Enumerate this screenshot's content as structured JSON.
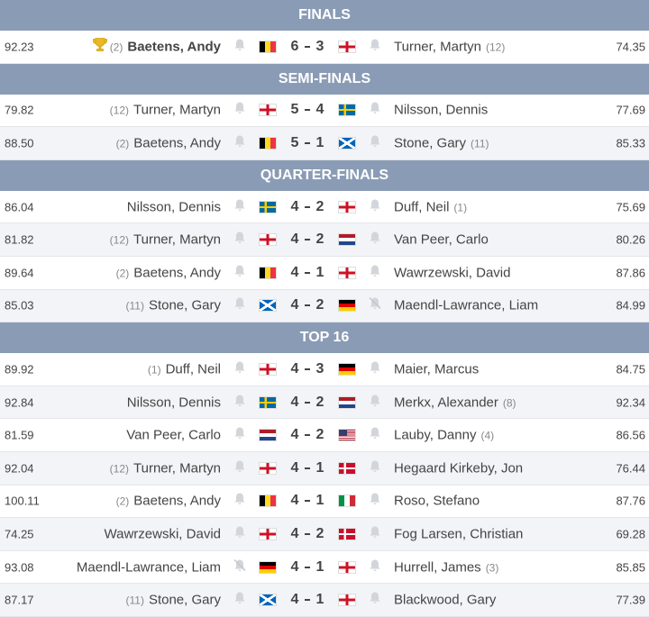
{
  "sections": [
    {
      "title": "FINALS",
      "matches": [
        {
          "avg1": "92.23",
          "seed1": "(2)",
          "name1": "Baetens, Andy",
          "score1": 6,
          "score2": 3,
          "name2": "Turner, Martyn",
          "seed2": "(12)",
          "avg2": "74.35"
        }
      ]
    },
    {
      "title": "SEMI-FINALS",
      "matches": [
        {
          "avg1": "79.82",
          "seed1": "(12)",
          "name1": "Turner, Martyn",
          "score1": 5,
          "score2": 4,
          "name2": "Nilsson, Dennis",
          "avg2": "77.69"
        },
        {
          "avg1": "88.50",
          "seed1": "(2)",
          "name1": "Baetens, Andy",
          "score1": 5,
          "score2": 1,
          "name2": "Stone, Gary",
          "seed2": "(11)",
          "avg2": "85.33"
        }
      ]
    },
    {
      "title": "QUARTER-FINALS",
      "matches": [
        {
          "avg1": "86.04",
          "name1": "Nilsson, Dennis",
          "score1": 4,
          "score2": 2,
          "name2": "Duff, Neil",
          "seed2": "(1)",
          "avg2": "75.69"
        },
        {
          "avg1": "81.82",
          "seed1": "(12)",
          "name1": "Turner, Martyn",
          "score1": 4,
          "score2": 2,
          "name2": "Van Peer, Carlo",
          "avg2": "80.26"
        },
        {
          "avg1": "89.64",
          "seed1": "(2)",
          "name1": "Baetens, Andy",
          "score1": 4,
          "score2": 1,
          "name2": "Wawrzewski, David",
          "avg2": "87.86"
        },
        {
          "avg1": "85.03",
          "seed1": "(11)",
          "name1": "Stone, Gary",
          "score1": 4,
          "score2": 2,
          "name2": "Maendl-Lawrance, Liam",
          "avg2": "84.99"
        }
      ]
    },
    {
      "title": "TOP 16",
      "matches": [
        {
          "avg1": "89.92",
          "seed1": "(1)",
          "name1": "Duff, Neil",
          "score1": 4,
          "score2": 3,
          "name2": "Maier, Marcus",
          "avg2": "84.75"
        },
        {
          "avg1": "92.84",
          "name1": "Nilsson, Dennis",
          "score1": 4,
          "score2": 2,
          "name2": "Merkx, Alexander",
          "seed2": "(8)",
          "avg2": "92.34"
        },
        {
          "avg1": "81.59",
          "name1": "Van Peer, Carlo",
          "score1": 4,
          "score2": 2,
          "name2": "Lauby, Danny",
          "seed2": "(4)",
          "avg2": "86.56"
        },
        {
          "avg1": "92.04",
          "seed1": "(12)",
          "name1": "Turner, Martyn",
          "score1": 4,
          "score2": 1,
          "name2": "Hegaard Kirkeby, Jon",
          "avg2": "76.44"
        },
        {
          "avg1": "100.11",
          "seed1": "(2)",
          "name1": "Baetens, Andy",
          "score1": 4,
          "score2": 1,
          "name2": "Roso, Stefano",
          "avg2": "87.76"
        },
        {
          "avg1": "74.25",
          "name1": "Wawrzewski, David",
          "score1": 4,
          "score2": 2,
          "name2": "Fog Larsen, Christian",
          "avg2": "69.28"
        },
        {
          "avg1": "93.08",
          "name1": "Maendl-Lawrance, Liam",
          "score1": 4,
          "score2": 1,
          "name2": "Hurrell, James",
          "seed2": "(3)",
          "avg2": "85.85"
        },
        {
          "avg1": "87.17",
          "seed1": "(11)",
          "name1": "Stone, Gary",
          "score1": 4,
          "score2": 1,
          "name2": "Blackwood, Gary",
          "avg2": "77.39"
        }
      ]
    }
  ]
}
